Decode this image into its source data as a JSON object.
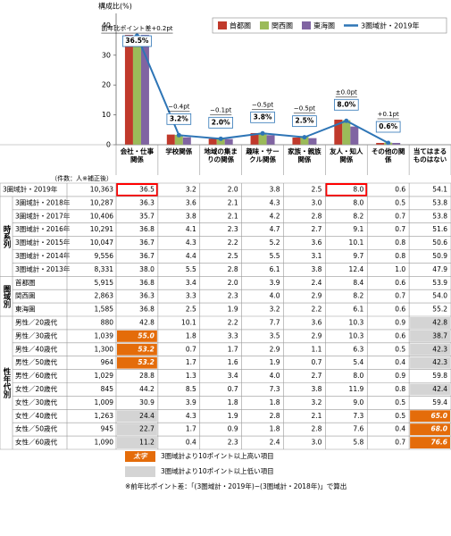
{
  "chart_data": {
    "type": "bar",
    "y_label": "構成比(%)",
    "categories": [
      "会社・仕事関係",
      "学校関係",
      "地域の集まりの関係",
      "趣味・サークル関係",
      "家族・親族関係",
      "友人・知人関係",
      "その他の関係",
      "当てはまるものはない"
    ],
    "ylim": [
      0,
      44
    ],
    "yticks": [
      0,
      10,
      20,
      30,
      40
    ],
    "legend": "top-right",
    "series": [
      {
        "name": "首都圏",
        "color": "#c0392b",
        "values": [
          36.8,
          3.4,
          2.0,
          3.9,
          2.4,
          8.4,
          0.6,
          null
        ]
      },
      {
        "name": "関西圏",
        "color": "#9bbb59",
        "values": [
          36.3,
          3.3,
          2.3,
          4.0,
          2.9,
          8.2,
          0.7,
          null
        ]
      },
      {
        "name": "東海圏",
        "color": "#8064a2",
        "values": [
          36.8,
          2.5,
          1.9,
          3.2,
          2.2,
          6.1,
          0.6,
          null
        ]
      },
      {
        "name": "3圏域計・2019年",
        "type": "line",
        "color": "#2e75b6",
        "values": [
          36.5,
          3.2,
          2.0,
          3.8,
          2.5,
          8.0,
          0.6,
          null
        ],
        "value_labels": [
          "36.5%",
          "3.2%",
          "2.0%",
          "3.8%",
          "2.5%",
          "8.0%",
          "0.6%",
          null
        ]
      }
    ],
    "annotations": [
      "前年比ポイント差+0.2pt",
      "−0.4pt",
      "−0.1pt",
      "−0.5pt",
      "−0.5pt",
      "±0.0pt",
      "+0.1pt",
      null
    ]
  },
  "table": {
    "unit_note": "（件数：人※補正後）",
    "total_row": {
      "label": "3圏域計・2019年",
      "count": "10,363",
      "values": [
        "36.5",
        "3.2",
        "2.0",
        "3.8",
        "2.5",
        "8.0",
        "0.6",
        "54.1"
      ],
      "highlight": [
        "box",
        null,
        null,
        null,
        null,
        "box",
        null,
        null
      ]
    },
    "groups": [
      {
        "label": "時系列",
        "rows": [
          {
            "label": "3圏域計・2018年",
            "count": "10,287",
            "values": [
              "36.3",
              "3.6",
              "2.1",
              "4.3",
              "3.0",
              "8.0",
              "0.5",
              "53.8"
            ]
          },
          {
            "label": "3圏域計・2017年",
            "count": "10,406",
            "values": [
              "35.7",
              "3.8",
              "2.1",
              "4.2",
              "2.8",
              "8.2",
              "0.7",
              "53.8"
            ]
          },
          {
            "label": "3圏域計・2016年",
            "count": "10,291",
            "values": [
              "36.8",
              "4.1",
              "2.3",
              "4.7",
              "2.7",
              "9.1",
              "0.7",
              "51.6"
            ]
          },
          {
            "label": "3圏域計・2015年",
            "count": "10,047",
            "values": [
              "36.7",
              "4.3",
              "2.2",
              "5.2",
              "3.6",
              "10.1",
              "0.8",
              "50.6"
            ]
          },
          {
            "label": "3圏域計・2014年",
            "count": "9,556",
            "values": [
              "36.7",
              "4.4",
              "2.5",
              "5.5",
              "3.1",
              "9.7",
              "0.8",
              "50.9"
            ]
          },
          {
            "label": "3圏域計・2013年",
            "count": "8,331",
            "values": [
              "38.0",
              "5.5",
              "2.8",
              "6.1",
              "3.8",
              "12.4",
              "1.0",
              "47.9"
            ]
          }
        ]
      },
      {
        "label": "圏域別",
        "rows": [
          {
            "label": "首都圏",
            "count": "5,915",
            "values": [
              "36.8",
              "3.4",
              "2.0",
              "3.9",
              "2.4",
              "8.4",
              "0.6",
              "53.9"
            ]
          },
          {
            "label": "関西圏",
            "count": "2,863",
            "values": [
              "36.3",
              "3.3",
              "2.3",
              "4.0",
              "2.9",
              "8.2",
              "0.7",
              "54.0"
            ]
          },
          {
            "label": "東海圏",
            "count": "1,585",
            "values": [
              "36.8",
              "2.5",
              "1.9",
              "3.2",
              "2.2",
              "6.1",
              "0.6",
              "55.2"
            ]
          }
        ]
      },
      {
        "label": "性年代別",
        "rows": [
          {
            "label": "男性／20歳代",
            "count": "880",
            "values": [
              "42.8",
              "10.1",
              "2.2",
              "7.7",
              "3.6",
              "10.3",
              "0.9",
              "42.8"
            ],
            "highlight": [
              null,
              null,
              null,
              null,
              null,
              null,
              null,
              "low"
            ]
          },
          {
            "label": "男性／30歳代",
            "count": "1,039",
            "values": [
              "55.0",
              "1.8",
              "3.3",
              "3.5",
              "2.9",
              "10.3",
              "0.6",
              "38.7"
            ],
            "highlight": [
              "high",
              null,
              null,
              null,
              null,
              null,
              null,
              "low"
            ]
          },
          {
            "label": "男性／40歳代",
            "count": "1,300",
            "values": [
              "53.2",
              "0.7",
              "1.7",
              "2.9",
              "1.1",
              "6.3",
              "0.5",
              "42.3"
            ],
            "highlight": [
              "high",
              null,
              null,
              null,
              null,
              null,
              null,
              "low"
            ]
          },
          {
            "label": "男性／50歳代",
            "count": "964",
            "values": [
              "53.2",
              "1.7",
              "1.6",
              "1.9",
              "0.7",
              "5.4",
              "0.4",
              "42.3"
            ],
            "highlight": [
              "high",
              null,
              null,
              null,
              null,
              null,
              null,
              "low"
            ]
          },
          {
            "label": "男性／60歳代",
            "count": "1,029",
            "values": [
              "28.8",
              "1.3",
              "3.4",
              "4.0",
              "2.7",
              "8.0",
              "0.9",
              "59.8"
            ]
          },
          {
            "label": "女性／20歳代",
            "count": "845",
            "values": [
              "44.2",
              "8.5",
              "0.7",
              "7.3",
              "3.8",
              "11.9",
              "0.8",
              "42.4"
            ],
            "highlight": [
              null,
              null,
              null,
              null,
              null,
              null,
              null,
              "low"
            ]
          },
          {
            "label": "女性／30歳代",
            "count": "1,009",
            "values": [
              "30.9",
              "3.9",
              "1.8",
              "1.8",
              "3.2",
              "9.0",
              "0.5",
              "59.4"
            ]
          },
          {
            "label": "女性／40歳代",
            "count": "1,263",
            "values": [
              "24.4",
              "4.3",
              "1.9",
              "2.8",
              "2.1",
              "7.3",
              "0.5",
              "65.0"
            ],
            "highlight": [
              "low",
              null,
              null,
              null,
              null,
              null,
              null,
              "high"
            ]
          },
          {
            "label": "女性／50歳代",
            "count": "945",
            "values": [
              "22.7",
              "1.7",
              "0.9",
              "1.8",
              "2.8",
              "7.6",
              "0.4",
              "68.0"
            ],
            "highlight": [
              "low",
              null,
              null,
              null,
              null,
              null,
              null,
              "high"
            ]
          },
          {
            "label": "女性／60歳代",
            "count": "1,090",
            "values": [
              "11.2",
              "0.4",
              "2.3",
              "2.4",
              "3.0",
              "5.8",
              "0.7",
              "76.6"
            ],
            "highlight": [
              "low",
              null,
              null,
              null,
              null,
              null,
              null,
              "high"
            ]
          }
        ]
      }
    ],
    "notes": [
      {
        "label": "太字",
        "text": "3圏域計より10ポイント以上高い項目",
        "style": "high"
      },
      {
        "text": "3圏域計より10ポイント以上低い項目",
        "style": "low"
      }
    ],
    "footnote": "※前年比ポイント差：「(3圏域計・2019年)−(3圏域計・2018年)」で算出"
  }
}
